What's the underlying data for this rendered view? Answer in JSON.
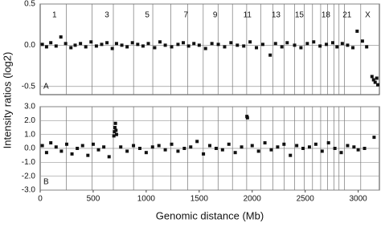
{
  "chart_data": [
    {
      "type": "scatter",
      "panel_label": "A",
      "ylabel": "Intensity ratios (log2)",
      "color": "#111111",
      "grid": true,
      "xlim": [
        0,
        3200
      ],
      "ylim": [
        -0.6,
        0.5
      ],
      "yticks": [
        {
          "value": 0.5,
          "label": "0.5"
        },
        {
          "value": 0.0,
          "label": "0.0"
        },
        {
          "value": -0.5,
          "label": "-0.5"
        }
      ],
      "chromosome_boundaries": [
        247,
        490,
        690,
        881,
        1062,
        1233,
        1392,
        1538,
        1678,
        1814,
        1948,
        2080,
        2194,
        2301,
        2401,
        2490,
        2569,
        2646,
        2710,
        2772,
        2819,
        2869,
        3024
      ],
      "chromosome_labels": [
        "1",
        "3",
        "5",
        "7",
        "9",
        "11",
        "13",
        "15",
        "18",
        "21",
        "X"
      ],
      "chromosome_label_positions": [
        135,
        630,
        1010,
        1375,
        1650,
        1955,
        2225,
        2445,
        2695,
        2895,
        3090
      ],
      "x": [
        20,
        60,
        100,
        150,
        195,
        240,
        290,
        330,
        380,
        430,
        480,
        530,
        580,
        630,
        680,
        720,
        770,
        820,
        870,
        920,
        970,
        1020,
        1080,
        1130,
        1180,
        1240,
        1300,
        1350,
        1400,
        1450,
        1500,
        1560,
        1620,
        1680,
        1740,
        1800,
        1860,
        1920,
        1980,
        2040,
        2100,
        2170,
        2220,
        2280,
        2330,
        2400,
        2460,
        2520,
        2580,
        2640,
        2700,
        2760,
        2800,
        2850,
        2900,
        2950,
        2990,
        3040,
        3080,
        3130,
        3145,
        3160,
        3175,
        3185
      ],
      "values": [
        0.01,
        -0.02,
        0.03,
        -0.01,
        0.1,
        0.02,
        -0.03,
        0.0,
        0.02,
        -0.02,
        0.04,
        -0.01,
        0.01,
        0.03,
        -0.04,
        0.02,
        0.0,
        -0.02,
        0.03,
        0.01,
        -0.01,
        0.02,
        -0.03,
        0.04,
        0.0,
        -0.02,
        0.01,
        0.03,
        -0.01,
        0.02,
        0.0,
        -0.04,
        0.02,
        0.01,
        -0.02,
        0.03,
        0.0,
        -0.01,
        0.04,
        -0.03,
        0.01,
        -0.12,
        0.02,
        -0.02,
        0.03,
        0.0,
        -0.03,
        0.02,
        0.04,
        -0.01,
        0.01,
        0.03,
        -0.02,
        0.02,
        0.0,
        -0.03,
        0.17,
        0.05,
        -0.02,
        -0.38,
        -0.42,
        -0.45,
        -0.4,
        -0.48
      ]
    },
    {
      "type": "scatter",
      "panel_label": "B",
      "xlabel": "Genomic distance (Mb)",
      "color": "#111111",
      "grid": true,
      "xlim": [
        0,
        3200
      ],
      "ylim": [
        -3.0,
        3.0
      ],
      "xticks": [
        0,
        500,
        1000,
        1500,
        2000,
        2500,
        3000
      ],
      "yticks": [
        {
          "value": 3.0,
          "label": "3.0"
        },
        {
          "value": 2.0,
          "label": "2.0"
        },
        {
          "value": 1.0,
          "label": "1.0"
        },
        {
          "value": 0.0,
          "label": "0.0"
        },
        {
          "value": -1.0,
          "label": "-1.0"
        },
        {
          "value": -2.0,
          "label": "-2.0"
        },
        {
          "value": -3.0,
          "label": "-3.0"
        }
      ],
      "chromosome_boundaries": [
        247,
        490,
        690,
        881,
        1062,
        1233,
        1392,
        1538,
        1678,
        1814,
        1948,
        2080,
        2194,
        2301,
        2401,
        2490,
        2569,
        2646,
        2710,
        2772,
        2819,
        2869,
        3024
      ],
      "x": [
        20,
        60,
        100,
        150,
        200,
        250,
        300,
        350,
        400,
        450,
        500,
        550,
        600,
        650,
        695,
        700,
        705,
        710,
        715,
        720,
        760,
        820,
        880,
        940,
        1000,
        1060,
        1120,
        1180,
        1240,
        1300,
        1360,
        1420,
        1480,
        1540,
        1600,
        1660,
        1720,
        1780,
        1840,
        1900,
        1950,
        1955,
        2000,
        2060,
        2120,
        2180,
        2240,
        2300,
        2360,
        2420,
        2480,
        2540,
        2600,
        2660,
        2720,
        2780,
        2840,
        2900,
        2960,
        3000,
        3060,
        3150
      ],
      "values": [
        0.2,
        -0.3,
        0.4,
        0.1,
        -0.2,
        0.3,
        -0.4,
        0.0,
        0.2,
        -0.5,
        0.3,
        -0.1,
        0.1,
        -0.6,
        0.9,
        1.2,
        1.5,
        1.8,
        1.3,
        1.0,
        0.1,
        -0.2,
        0.2,
        0.0,
        -0.3,
        0.1,
        0.2,
        -0.1,
        0.3,
        -0.2,
        0.0,
        0.1,
        0.5,
        -0.4,
        0.2,
        0.0,
        -0.1,
        0.3,
        -0.3,
        0.1,
        2.3,
        2.2,
        0.2,
        -0.2,
        0.4,
        -0.1,
        0.1,
        0.3,
        -0.5,
        0.2,
        0.0,
        0.1,
        0.3,
        -0.2,
        0.4,
        0.0,
        -0.3,
        0.2,
        0.1,
        -0.1,
        0.0,
        0.8
      ]
    }
  ]
}
